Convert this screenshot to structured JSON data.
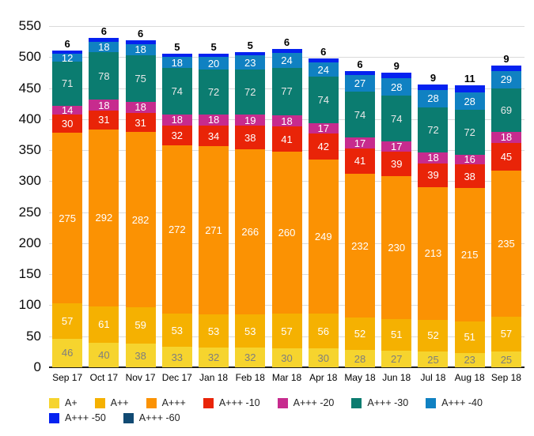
{
  "chart_data": {
    "type": "bar",
    "stacked": true,
    "grid": true,
    "legend_position": "bottom",
    "categories": [
      "Sep 17",
      "Oct 17",
      "Nov 17",
      "Dec 17",
      "Jan 18",
      "Feb 18",
      "Mar 18",
      "Apr 18",
      "May 18",
      "Jun 18",
      "Jul 18",
      "Aug 18",
      "Sep 18"
    ],
    "y_axis": {
      "min": 0,
      "max": 550,
      "step": 50,
      "ticks": [
        0,
        50,
        100,
        150,
        200,
        250,
        300,
        350,
        400,
        450,
        500,
        550
      ]
    },
    "series": [
      {
        "name": "A+",
        "color": "#F6D42E",
        "label_color": "#7e7e7e",
        "label_position": "inside",
        "values": [
          46,
          40,
          38,
          33,
          32,
          32,
          30,
          30,
          28,
          27,
          25,
          23,
          25
        ]
      },
      {
        "name": "A++",
        "color": "#F5B101",
        "label_color": "#ffffff",
        "label_position": "inside",
        "values": [
          57,
          61,
          59,
          53,
          53,
          53,
          57,
          56,
          52,
          51,
          52,
          51,
          57
        ]
      },
      {
        "name": "A+++",
        "color": "#FB9203",
        "label_color": "#ffffff",
        "label_position": "inside",
        "values": [
          275,
          292,
          282,
          272,
          271,
          266,
          260,
          249,
          232,
          230,
          213,
          215,
          235
        ]
      },
      {
        "name": "A+++ -10",
        "color": "#E92408",
        "label_color": "#ffffff",
        "label_position": "inside",
        "values": [
          30,
          31,
          31,
          32,
          34,
          38,
          41,
          42,
          41,
          39,
          39,
          38,
          45
        ]
      },
      {
        "name": "A+++ -20",
        "color": "#C72B8E",
        "label_color": "#ffffff",
        "label_position": "inside",
        "values": [
          14,
          18,
          18,
          18,
          18,
          19,
          18,
          17,
          17,
          17,
          18,
          16,
          18
        ]
      },
      {
        "name": "A+++ -30",
        "color": "#0B7C70",
        "label_color": "#e8e8e8",
        "label_position": "inside",
        "values": [
          71,
          78,
          75,
          74,
          72,
          72,
          77,
          74,
          74,
          74,
          72,
          72,
          69
        ]
      },
      {
        "name": "A+++ -40",
        "color": "#1081C2",
        "label_color": "#ffffff",
        "label_position": "inside",
        "values": [
          12,
          18,
          18,
          18,
          20,
          23,
          24,
          24,
          27,
          28,
          28,
          28,
          29
        ]
      },
      {
        "name": "A+++ -50",
        "color": "#0522F0",
        "label_color": "#000000",
        "label_position": "above",
        "values": [
          6,
          6,
          6,
          5,
          5,
          5,
          6,
          6,
          6,
          9,
          9,
          11,
          9
        ]
      },
      {
        "name": "A+++ -60",
        "color": "#114A73",
        "label_color": "#ffffff",
        "label_position": "inside",
        "values": [
          0,
          0,
          0,
          0,
          0,
          0,
          0,
          0,
          0,
          0,
          0,
          0,
          0
        ]
      }
    ]
  },
  "colors": {
    "gridline": "#dadada",
    "axis_line": "#1a1a1a",
    "background": "#ffffff"
  }
}
